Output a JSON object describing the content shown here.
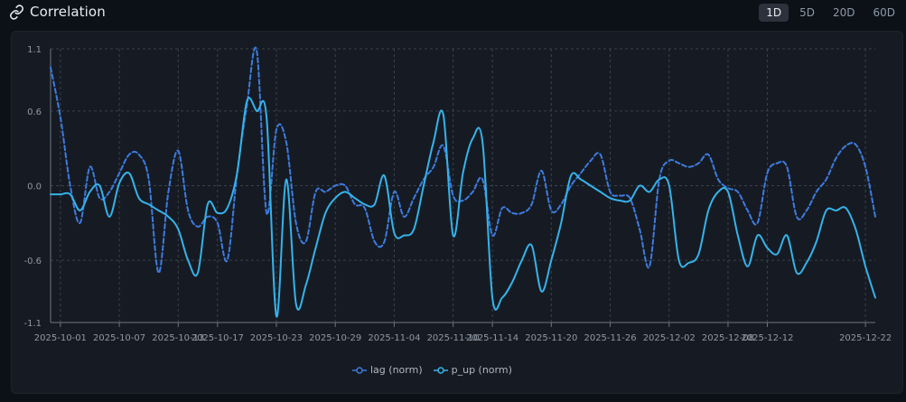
{
  "header": {
    "title": "Correlation",
    "icon": "link-icon",
    "timeframes": [
      "1D",
      "5D",
      "20D",
      "60D"
    ],
    "active_timeframe": "1D"
  },
  "legend": {
    "items": [
      {
        "label": "lag (norm)",
        "color": "#3d7be0",
        "dashed": true
      },
      {
        "label": "p_up (norm)",
        "color": "#35b3ea",
        "dashed": false
      }
    ]
  },
  "colors": {
    "lag": "#3d7be0",
    "p_up": "#35b3ea",
    "grid": "#3a414b",
    "axis_text": "#8f98a4"
  },
  "chart_data": {
    "type": "line",
    "x_start": "2025-10-01",
    "x_end": "2025-12-23",
    "y_ticks": [
      "1.1",
      "0.6",
      "0.0",
      "-0.6",
      "-1.1"
    ],
    "y_tick_values": [
      1.1,
      0.6,
      0.0,
      -0.6,
      -1.1
    ],
    "ylim": [
      -1.1,
      1.1
    ],
    "x_ticks": [
      "2025-10-01",
      "2025-10-07",
      "2025-10-13",
      "2025-10-17",
      "2025-10-23",
      "2025-10-29",
      "2025-11-04",
      "2025-11-10",
      "2025-11-14",
      "2025-11-20",
      "2025-11-26",
      "2025-12-02",
      "2025-12-08",
      "2025-12-12",
      "2025-12-22"
    ],
    "grid": true,
    "legend_position": "bottom-center",
    "series": [
      {
        "name": "lag (norm)",
        "style": "dashed",
        "color": "#3d7be0",
        "points": [
          [
            "2025-09-30",
            0.95
          ],
          [
            "2025-10-01",
            0.55
          ],
          [
            "2025-10-02",
            0.0
          ],
          [
            "2025-10-03",
            -0.3
          ],
          [
            "2025-10-04",
            0.15
          ],
          [
            "2025-10-05",
            -0.1
          ],
          [
            "2025-10-06",
            -0.05
          ],
          [
            "2025-10-07",
            0.1
          ],
          [
            "2025-10-08",
            0.25
          ],
          [
            "2025-10-09",
            0.25
          ],
          [
            "2025-10-10",
            0.05
          ],
          [
            "2025-10-11",
            -0.7
          ],
          [
            "2025-10-12",
            -0.05
          ],
          [
            "2025-10-13",
            0.28
          ],
          [
            "2025-10-14",
            -0.2
          ],
          [
            "2025-10-15",
            -0.33
          ],
          [
            "2025-10-16",
            -0.25
          ],
          [
            "2025-10-17",
            -0.3
          ],
          [
            "2025-10-18",
            -0.6
          ],
          [
            "2025-10-19",
            0.1
          ],
          [
            "2025-10-20",
            0.65
          ],
          [
            "2025-10-21",
            1.08
          ],
          [
            "2025-10-22",
            -0.22
          ],
          [
            "2025-10-23",
            0.45
          ],
          [
            "2025-10-24",
            0.35
          ],
          [
            "2025-10-25",
            -0.3
          ],
          [
            "2025-10-26",
            -0.45
          ],
          [
            "2025-10-27",
            -0.05
          ],
          [
            "2025-10-28",
            -0.05
          ],
          [
            "2025-10-29",
            0.0
          ],
          [
            "2025-10-30",
            0.0
          ],
          [
            "2025-10-31",
            -0.15
          ],
          [
            "2025-11-01",
            -0.18
          ],
          [
            "2025-11-02",
            -0.45
          ],
          [
            "2025-11-03",
            -0.45
          ],
          [
            "2025-11-04",
            -0.05
          ],
          [
            "2025-11-05",
            -0.25
          ],
          [
            "2025-11-06",
            -0.1
          ],
          [
            "2025-11-07",
            0.05
          ],
          [
            "2025-11-08",
            0.15
          ],
          [
            "2025-11-09",
            0.32
          ],
          [
            "2025-11-10",
            -0.08
          ],
          [
            "2025-11-11",
            -0.12
          ],
          [
            "2025-11-12",
            -0.05
          ],
          [
            "2025-11-13",
            0.05
          ],
          [
            "2025-11-14",
            -0.4
          ],
          [
            "2025-11-15",
            -0.18
          ],
          [
            "2025-11-16",
            -0.22
          ],
          [
            "2025-11-17",
            -0.22
          ],
          [
            "2025-11-18",
            -0.15
          ],
          [
            "2025-11-19",
            0.12
          ],
          [
            "2025-11-20",
            -0.2
          ],
          [
            "2025-11-21",
            -0.15
          ],
          [
            "2025-11-22",
            0.0
          ],
          [
            "2025-11-23",
            0.1
          ],
          [
            "2025-11-24",
            0.2
          ],
          [
            "2025-11-25",
            0.25
          ],
          [
            "2025-11-26",
            -0.05
          ],
          [
            "2025-11-27",
            -0.08
          ],
          [
            "2025-11-28",
            -0.1
          ],
          [
            "2025-11-29",
            -0.35
          ],
          [
            "2025-11-30",
            -0.65
          ],
          [
            "2025-12-01",
            0.05
          ],
          [
            "2025-12-02",
            0.2
          ],
          [
            "2025-12-03",
            0.18
          ],
          [
            "2025-12-04",
            0.15
          ],
          [
            "2025-12-05",
            0.18
          ],
          [
            "2025-12-06",
            0.25
          ],
          [
            "2025-12-07",
            0.05
          ],
          [
            "2025-12-08",
            -0.02
          ],
          [
            "2025-12-09",
            -0.05
          ],
          [
            "2025-12-10",
            -0.2
          ],
          [
            "2025-12-11",
            -0.3
          ],
          [
            "2025-12-12",
            0.1
          ],
          [
            "2025-12-13",
            0.18
          ],
          [
            "2025-12-14",
            0.15
          ],
          [
            "2025-12-15",
            -0.25
          ],
          [
            "2025-12-16",
            -0.2
          ],
          [
            "2025-12-17",
            -0.05
          ],
          [
            "2025-12-18",
            0.05
          ],
          [
            "2025-12-19",
            0.22
          ],
          [
            "2025-12-20",
            0.32
          ],
          [
            "2025-12-21",
            0.33
          ],
          [
            "2025-12-22",
            0.15
          ],
          [
            "2025-12-23",
            -0.25
          ]
        ]
      },
      {
        "name": "p_up (norm)",
        "style": "solid",
        "color": "#35b3ea",
        "points": [
          [
            "2025-09-30",
            -0.07
          ],
          [
            "2025-10-01",
            -0.07
          ],
          [
            "2025-10-02",
            -0.07
          ],
          [
            "2025-10-03",
            -0.2
          ],
          [
            "2025-10-04",
            -0.05
          ],
          [
            "2025-10-05",
            0.0
          ],
          [
            "2025-10-06",
            -0.25
          ],
          [
            "2025-10-07",
            0.02
          ],
          [
            "2025-10-08",
            0.1
          ],
          [
            "2025-10-09",
            -0.1
          ],
          [
            "2025-10-10",
            -0.15
          ],
          [
            "2025-10-11",
            -0.2
          ],
          [
            "2025-10-12",
            -0.25
          ],
          [
            "2025-10-13",
            -0.35
          ],
          [
            "2025-10-14",
            -0.6
          ],
          [
            "2025-10-15",
            -0.7
          ],
          [
            "2025-10-16",
            -0.15
          ],
          [
            "2025-10-17",
            -0.22
          ],
          [
            "2025-10-18",
            -0.18
          ],
          [
            "2025-10-19",
            0.1
          ],
          [
            "2025-10-20",
            0.68
          ],
          [
            "2025-10-21",
            0.6
          ],
          [
            "2025-10-22",
            0.55
          ],
          [
            "2025-10-23",
            -1.05
          ],
          [
            "2025-10-24",
            0.05
          ],
          [
            "2025-10-25",
            -0.95
          ],
          [
            "2025-10-26",
            -0.8
          ],
          [
            "2025-10-27",
            -0.5
          ],
          [
            "2025-10-28",
            -0.22
          ],
          [
            "2025-10-29",
            -0.1
          ],
          [
            "2025-10-30",
            -0.05
          ],
          [
            "2025-10-31",
            -0.1
          ],
          [
            "2025-11-01",
            -0.15
          ],
          [
            "2025-11-02",
            -0.15
          ],
          [
            "2025-11-03",
            0.08
          ],
          [
            "2025-11-04",
            -0.38
          ],
          [
            "2025-11-05",
            -0.4
          ],
          [
            "2025-11-06",
            -0.35
          ],
          [
            "2025-11-07",
            0.0
          ],
          [
            "2025-11-08",
            0.35
          ],
          [
            "2025-11-09",
            0.57
          ],
          [
            "2025-11-10",
            -0.4
          ],
          [
            "2025-11-11",
            0.1
          ],
          [
            "2025-11-12",
            0.38
          ],
          [
            "2025-11-13",
            0.35
          ],
          [
            "2025-11-14",
            -0.9
          ],
          [
            "2025-11-15",
            -0.9
          ],
          [
            "2025-11-16",
            -0.78
          ],
          [
            "2025-11-17",
            -0.6
          ],
          [
            "2025-11-18",
            -0.48
          ],
          [
            "2025-11-19",
            -0.85
          ],
          [
            "2025-11-20",
            -0.6
          ],
          [
            "2025-11-21",
            -0.3
          ],
          [
            "2025-11-22",
            0.08
          ],
          [
            "2025-11-23",
            0.05
          ],
          [
            "2025-11-24",
            0.0
          ],
          [
            "2025-11-25",
            -0.05
          ],
          [
            "2025-11-26",
            -0.1
          ],
          [
            "2025-11-27",
            -0.12
          ],
          [
            "2025-11-28",
            -0.12
          ],
          [
            "2025-11-29",
            0.0
          ],
          [
            "2025-11-30",
            -0.05
          ],
          [
            "2025-12-01",
            0.05
          ],
          [
            "2025-12-02",
            0.0
          ],
          [
            "2025-12-03",
            -0.6
          ],
          [
            "2025-12-04",
            -0.62
          ],
          [
            "2025-12-05",
            -0.55
          ],
          [
            "2025-12-06",
            -0.2
          ],
          [
            "2025-12-07",
            -0.05
          ],
          [
            "2025-12-08",
            -0.05
          ],
          [
            "2025-12-09",
            -0.4
          ],
          [
            "2025-12-10",
            -0.65
          ],
          [
            "2025-12-11",
            -0.4
          ],
          [
            "2025-12-12",
            -0.5
          ],
          [
            "2025-12-13",
            -0.55
          ],
          [
            "2025-12-14",
            -0.4
          ],
          [
            "2025-12-15",
            -0.7
          ],
          [
            "2025-12-16",
            -0.62
          ],
          [
            "2025-12-17",
            -0.45
          ],
          [
            "2025-12-18",
            -0.2
          ],
          [
            "2025-12-19",
            -0.2
          ],
          [
            "2025-12-20",
            -0.18
          ],
          [
            "2025-12-21",
            -0.35
          ],
          [
            "2025-12-22",
            -0.65
          ],
          [
            "2025-12-23",
            -0.9
          ]
        ]
      }
    ]
  }
}
